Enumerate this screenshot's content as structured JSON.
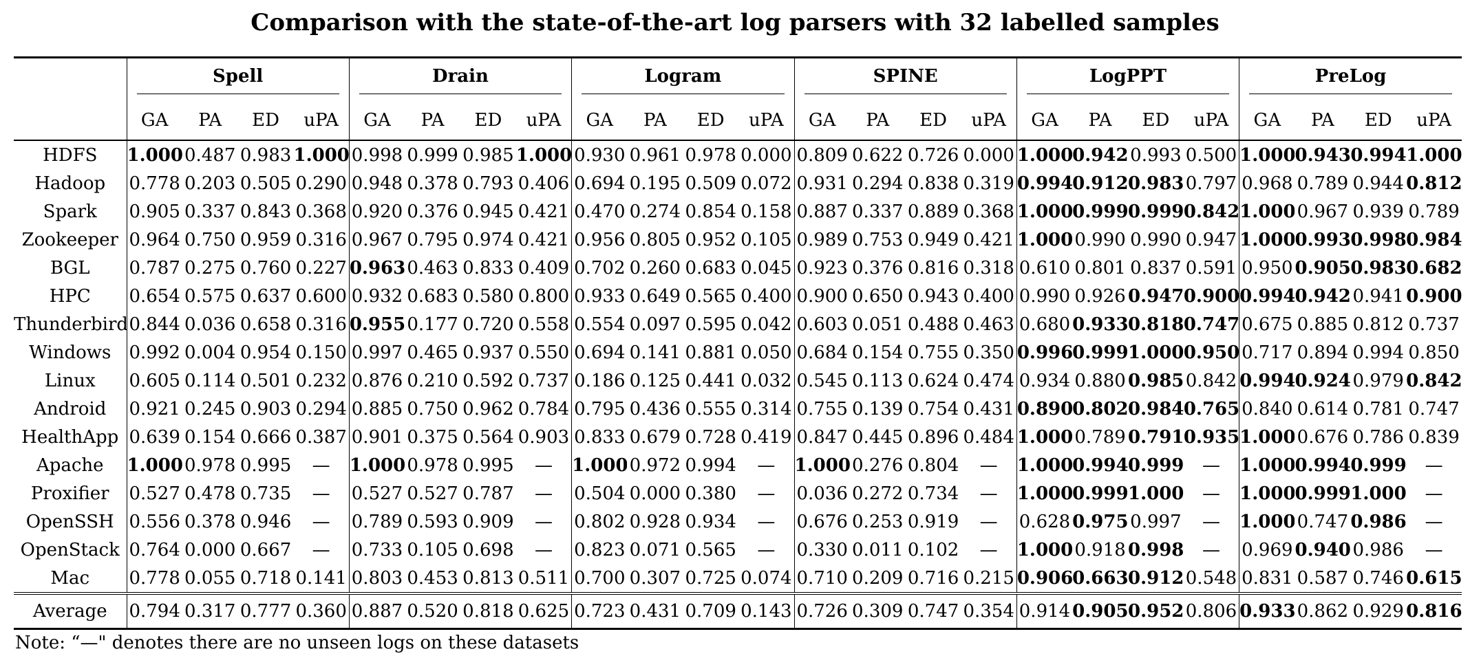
{
  "caption": "Comparison with the state-of-the-art log parsers with 32 labelled samples",
  "methods": [
    "Spell",
    "Drain",
    "Logram",
    "SPINE",
    "LogPPT",
    "PreLog"
  ],
  "metrics": [
    "GA",
    "PA",
    "ED",
    "uPA"
  ],
  "rows": [
    {
      "dataset": "HDFS",
      "values": [
        "1.000",
        "0.487",
        "0.983",
        "1.000",
        "0.998",
        "0.999",
        "0.985",
        "1.000",
        "0.930",
        "0.961",
        "0.978",
        "0.000",
        "0.809",
        "0.622",
        "0.726",
        "0.000",
        "1.000",
        "0.942",
        "0.993",
        "0.500",
        "1.000",
        "0.943",
        "0.994",
        "1.000"
      ],
      "bold": [
        0,
        3,
        7,
        16,
        17,
        20,
        21,
        22,
        23
      ]
    },
    {
      "dataset": "Hadoop",
      "values": [
        "0.778",
        "0.203",
        "0.505",
        "0.290",
        "0.948",
        "0.378",
        "0.793",
        "0.406",
        "0.694",
        "0.195",
        "0.509",
        "0.072",
        "0.931",
        "0.294",
        "0.838",
        "0.319",
        "0.994",
        "0.912",
        "0.983",
        "0.797",
        "0.968",
        "0.789",
        "0.944",
        "0.812"
      ],
      "bold": [
        16,
        17,
        18,
        23
      ]
    },
    {
      "dataset": "Spark",
      "values": [
        "0.905",
        "0.337",
        "0.843",
        "0.368",
        "0.920",
        "0.376",
        "0.945",
        "0.421",
        "0.470",
        "0.274",
        "0.854",
        "0.158",
        "0.887",
        "0.337",
        "0.889",
        "0.368",
        "1.000",
        "0.999",
        "0.999",
        "0.842",
        "1.000",
        "0.967",
        "0.939",
        "0.789"
      ],
      "bold": [
        16,
        17,
        18,
        19,
        20
      ]
    },
    {
      "dataset": "Zookeeper",
      "values": [
        "0.964",
        "0.750",
        "0.959",
        "0.316",
        "0.967",
        "0.795",
        "0.974",
        "0.421",
        "0.956",
        "0.805",
        "0.952",
        "0.105",
        "0.989",
        "0.753",
        "0.949",
        "0.421",
        "1.000",
        "0.990",
        "0.990",
        "0.947",
        "1.000",
        "0.993",
        "0.998",
        "0.984"
      ],
      "bold": [
        16,
        20,
        21,
        22,
        23
      ]
    },
    {
      "dataset": "BGL",
      "values": [
        "0.787",
        "0.275",
        "0.760",
        "0.227",
        "0.963",
        "0.463",
        "0.833",
        "0.409",
        "0.702",
        "0.260",
        "0.683",
        "0.045",
        "0.923",
        "0.376",
        "0.816",
        "0.318",
        "0.610",
        "0.801",
        "0.837",
        "0.591",
        "0.950",
        "0.905",
        "0.983",
        "0.682"
      ],
      "bold": [
        4,
        21,
        22,
        23
      ]
    },
    {
      "dataset": "HPC",
      "values": [
        "0.654",
        "0.575",
        "0.637",
        "0.600",
        "0.932",
        "0.683",
        "0.580",
        "0.800",
        "0.933",
        "0.649",
        "0.565",
        "0.400",
        "0.900",
        "0.650",
        "0.943",
        "0.400",
        "0.990",
        "0.926",
        "0.947",
        "0.900",
        "0.994",
        "0.942",
        "0.941",
        "0.900"
      ],
      "bold": [
        18,
        19,
        20,
        21,
        23
      ]
    },
    {
      "dataset": "Thunderbird",
      "values": [
        "0.844",
        "0.036",
        "0.658",
        "0.316",
        "0.955",
        "0.177",
        "0.720",
        "0.558",
        "0.554",
        "0.097",
        "0.595",
        "0.042",
        "0.603",
        "0.051",
        "0.488",
        "0.463",
        "0.680",
        "0.933",
        "0.818",
        "0.747",
        "0.675",
        "0.885",
        "0.812",
        "0.737"
      ],
      "bold": [
        4,
        17,
        18,
        19
      ]
    },
    {
      "dataset": "Windows",
      "values": [
        "0.992",
        "0.004",
        "0.954",
        "0.150",
        "0.997",
        "0.465",
        "0.937",
        "0.550",
        "0.694",
        "0.141",
        "0.881",
        "0.050",
        "0.684",
        "0.154",
        "0.755",
        "0.350",
        "0.996",
        "0.999",
        "1.000",
        "0.950",
        "0.717",
        "0.894",
        "0.994",
        "0.850"
      ],
      "bold": [
        16,
        17,
        18,
        19
      ]
    },
    {
      "dataset": "Linux",
      "values": [
        "0.605",
        "0.114",
        "0.501",
        "0.232",
        "0.876",
        "0.210",
        "0.592",
        "0.737",
        "0.186",
        "0.125",
        "0.441",
        "0.032",
        "0.545",
        "0.113",
        "0.624",
        "0.474",
        "0.934",
        "0.880",
        "0.985",
        "0.842",
        "0.994",
        "0.924",
        "0.979",
        "0.842"
      ],
      "bold": [
        18,
        20,
        21,
        23
      ]
    },
    {
      "dataset": "Android",
      "values": [
        "0.921",
        "0.245",
        "0.903",
        "0.294",
        "0.885",
        "0.750",
        "0.962",
        "0.784",
        "0.795",
        "0.436",
        "0.555",
        "0.314",
        "0.755",
        "0.139",
        "0.754",
        "0.431",
        "0.890",
        "0.802",
        "0.984",
        "0.765",
        "0.840",
        "0.614",
        "0.781",
        "0.747"
      ],
      "bold": [
        16,
        17,
        18,
        19
      ]
    },
    {
      "dataset": "HealthApp",
      "values": [
        "0.639",
        "0.154",
        "0.666",
        "0.387",
        "0.901",
        "0.375",
        "0.564",
        "0.903",
        "0.833",
        "0.679",
        "0.728",
        "0.419",
        "0.847",
        "0.445",
        "0.896",
        "0.484",
        "1.000",
        "0.789",
        "0.791",
        "0.935",
        "1.000",
        "0.676",
        "0.786",
        "0.839"
      ],
      "bold": [
        16,
        18,
        19,
        20
      ]
    },
    {
      "dataset": "Apache",
      "values": [
        "1.000",
        "0.978",
        "0.995",
        "—",
        "1.000",
        "0.978",
        "0.995",
        "—",
        "1.000",
        "0.972",
        "0.994",
        "—",
        "1.000",
        "0.276",
        "0.804",
        "—",
        "1.000",
        "0.994",
        "0.999",
        "—",
        "1.000",
        "0.994",
        "0.999",
        "—"
      ],
      "bold": [
        0,
        4,
        8,
        12,
        16,
        17,
        18,
        20,
        21,
        22
      ]
    },
    {
      "dataset": "Proxifier",
      "values": [
        "0.527",
        "0.478",
        "0.735",
        "—",
        "0.527",
        "0.527",
        "0.787",
        "—",
        "0.504",
        "0.000",
        "0.380",
        "—",
        "0.036",
        "0.272",
        "0.734",
        "—",
        "1.000",
        "0.999",
        "1.000",
        "—",
        "1.000",
        "0.999",
        "1.000",
        "—"
      ],
      "bold": [
        16,
        17,
        18,
        20,
        21,
        22
      ]
    },
    {
      "dataset": "OpenSSH",
      "values": [
        "0.556",
        "0.378",
        "0.946",
        "—",
        "0.789",
        "0.593",
        "0.909",
        "—",
        "0.802",
        "0.928",
        "0.934",
        "—",
        "0.676",
        "0.253",
        "0.919",
        "—",
        "0.628",
        "0.975",
        "0.997",
        "—",
        "1.000",
        "0.747",
        "0.986",
        "—"
      ],
      "bold": [
        17,
        20,
        22
      ]
    },
    {
      "dataset": "OpenStack",
      "values": [
        "0.764",
        "0.000",
        "0.667",
        "—",
        "0.733",
        "0.105",
        "0.698",
        "—",
        "0.823",
        "0.071",
        "0.565",
        "—",
        "0.330",
        "0.011",
        "0.102",
        "—",
        "1.000",
        "0.918",
        "0.998",
        "—",
        "0.969",
        "0.940",
        "0.986",
        "—"
      ],
      "bold": [
        16,
        18,
        21
      ]
    },
    {
      "dataset": "Mac",
      "values": [
        "0.778",
        "0.055",
        "0.718",
        "0.141",
        "0.803",
        "0.453",
        "0.813",
        "0.511",
        "0.700",
        "0.307",
        "0.725",
        "0.074",
        "0.710",
        "0.209",
        "0.716",
        "0.215",
        "0.906",
        "0.663",
        "0.912",
        "0.548",
        "0.831",
        "0.587",
        "0.746",
        "0.615"
      ],
      "bold": [
        16,
        17,
        18,
        23
      ]
    }
  ],
  "average": {
    "dataset": "Average",
    "values": [
      "0.794",
      "0.317",
      "0.777",
      "0.360",
      "0.887",
      "0.520",
      "0.818",
      "0.625",
      "0.723",
      "0.431",
      "0.709",
      "0.143",
      "0.726",
      "0.309",
      "0.747",
      "0.354",
      "0.914",
      "0.905",
      "0.952",
      "0.806",
      "0.933",
      "0.862",
      "0.929",
      "0.816"
    ],
    "bold": [
      17,
      18,
      20,
      23
    ]
  },
  "note": "Note: “—\" denotes there are no unseen logs on these datasets"
}
